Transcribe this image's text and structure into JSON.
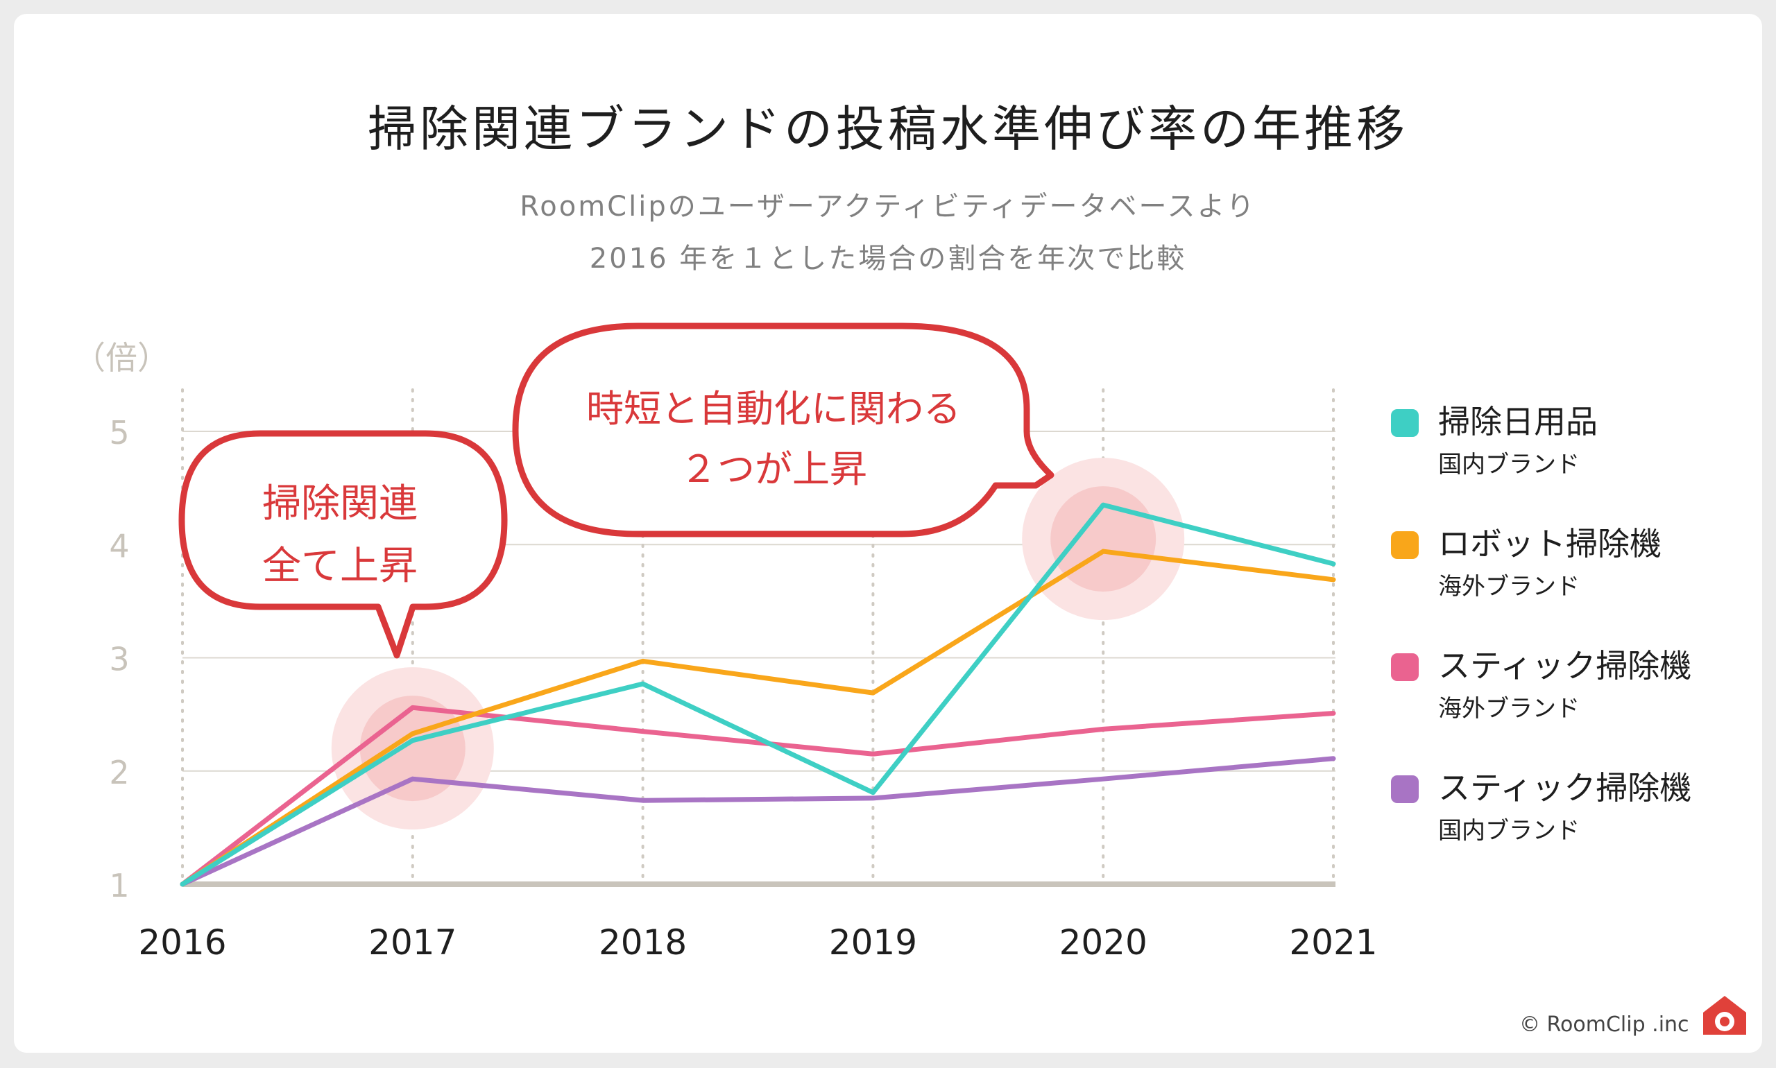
{
  "title": "掃除関連ブランドの投稿水準伸び率の年推移",
  "subtitle_line1": "RoomClipのユーザーアクティビティデータベースより",
  "subtitle_line2": "2016 年を１とした場合の割合を年次で比較",
  "copyright": "© RoomClip .inc",
  "chart_data": {
    "type": "line",
    "ylabel": "（倍）",
    "xlabel": "",
    "categories": [
      "2016",
      "2017",
      "2018",
      "2019",
      "2020",
      "2021"
    ],
    "ylim": [
      1,
      5
    ],
    "yticks": [
      1,
      2,
      3,
      4,
      5
    ],
    "grid": "horizontal lines and dotted vertical lines",
    "legend_position": "right",
    "series": [
      {
        "name": "掃除日用品",
        "sub": "国内ブランド",
        "color": "#3ecfc4",
        "values": [
          1.0,
          2.27,
          2.77,
          1.81,
          4.35,
          3.83
        ]
      },
      {
        "name": "ロボット掃除機",
        "sub": "海外ブランド",
        "color": "#f9a61a",
        "values": [
          1.0,
          2.33,
          2.97,
          2.69,
          3.94,
          3.69
        ]
      },
      {
        "name": "スティック掃除機",
        "sub": "海外ブランド",
        "color": "#ea6390",
        "values": [
          1.0,
          2.56,
          2.35,
          2.15,
          2.37,
          2.51
        ]
      },
      {
        "name": "スティック掃除機",
        "sub": "国内ブランド",
        "color": "#a874c4",
        "values": [
          1.0,
          1.93,
          1.74,
          1.76,
          1.93,
          2.11
        ]
      }
    ],
    "annotations": [
      {
        "lines": [
          "掃除関連",
          "全て上昇"
        ],
        "target": "2017"
      },
      {
        "lines": [
          "時短と自動化に関わる",
          "２つが上昇"
        ],
        "target": "2020"
      }
    ]
  }
}
